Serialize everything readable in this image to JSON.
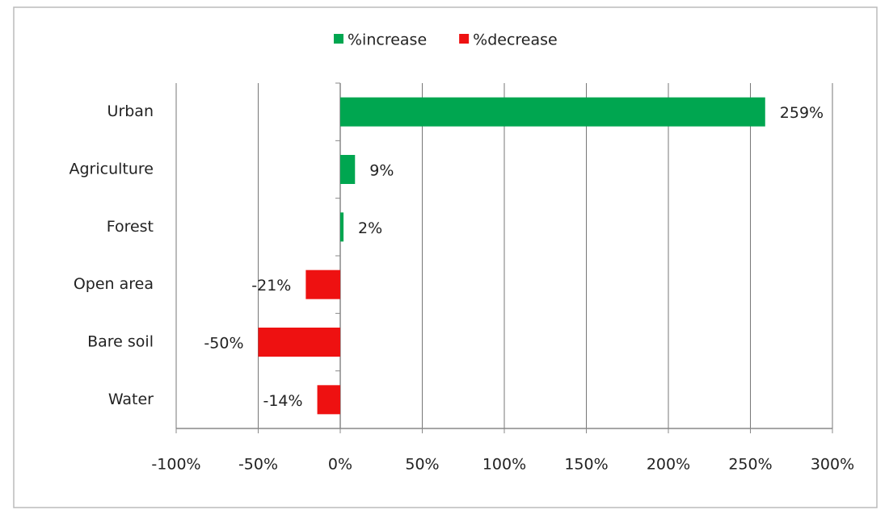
{
  "chart_data": {
    "type": "bar",
    "orientation": "horizontal",
    "categories": [
      "Urban",
      "Agriculture",
      "Forest",
      "Open area",
      "Bare soil",
      "Water"
    ],
    "series": [
      {
        "name": "%increase",
        "color": "#00a650",
        "values": [
          259,
          9,
          2,
          null,
          null,
          null
        ],
        "value_labels": [
          "259%",
          "9%",
          "2%",
          null,
          null,
          null
        ]
      },
      {
        "name": "%decrease",
        "color": "#ee1111",
        "values": [
          null,
          null,
          null,
          -21,
          -50,
          -14
        ],
        "value_labels": [
          null,
          null,
          null,
          "-21%",
          "-50%",
          "-14%"
        ]
      }
    ],
    "xlim": [
      -100,
      300
    ],
    "xticks": [
      {
        "value": -100,
        "label": "-100%"
      },
      {
        "value": -50,
        "label": "-50%"
      },
      {
        "value": 0,
        "label": "0%"
      },
      {
        "value": 50,
        "label": "50%"
      },
      {
        "value": 100,
        "label": "100%"
      },
      {
        "value": 150,
        "label": "150%"
      },
      {
        "value": 200,
        "label": "200%"
      },
      {
        "value": 250,
        "label": "250%"
      },
      {
        "value": 300,
        "label": "300%"
      }
    ],
    "grid": true,
    "legend": "top"
  }
}
